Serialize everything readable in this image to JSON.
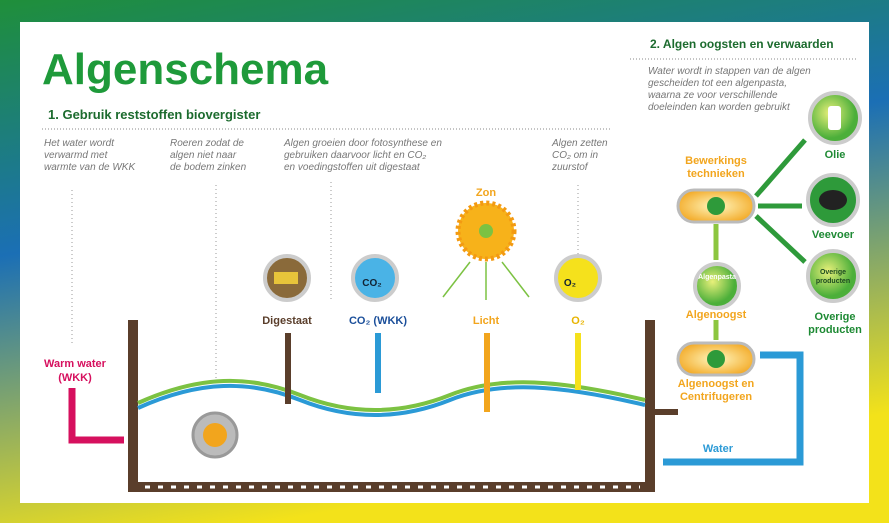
{
  "header": {
    "title": "Algenschema"
  },
  "section1": {
    "title": "1. Gebruik reststoffen biovergister",
    "notes": [
      [
        "Het water wordt",
        "verwarmd met",
        "warmte van de WKK"
      ],
      [
        "Roeren zodat de",
        "algen niet naar",
        "de bodem zinken"
      ],
      [
        "Algen groeien door fotosynthese en",
        "gebruiken daarvoor licht en CO₂",
        "en voedingstoffen uit digestaat"
      ],
      [
        "Algen zetten",
        "CO₂ om in",
        "zuurstof"
      ]
    ],
    "inputs": {
      "warm_water": [
        "Warm water",
        "(WKK)"
      ],
      "digestaat": "Digestaat",
      "co2": "CO₂ (WKK)",
      "co2_icon": "CO₂",
      "zon": "Zon",
      "licht": "Licht",
      "o2": "O₂",
      "o2_icon": "O₂"
    }
  },
  "section2": {
    "title": "2. Algen oogsten en verwaarden",
    "description": [
      "Water wordt in stappen van de algen",
      "gescheiden tot een algenpasta,",
      "waarna ze voor verschillende",
      "doeleinden kan worden gebruikt"
    ],
    "nodes": {
      "centrifuge": [
        "Algenoogst en",
        "Centrifugeren"
      ],
      "algenoogst": "Algenoogst",
      "algenpasta": "Algenpasta",
      "bewerking": [
        "Bewerkings",
        "technieken"
      ],
      "olie": "Olie",
      "veevoer": "Veevoer",
      "overige_icon": [
        "Overige",
        "producten"
      ],
      "overige": [
        "Overige",
        "producten"
      ],
      "water": "Water"
    }
  }
}
